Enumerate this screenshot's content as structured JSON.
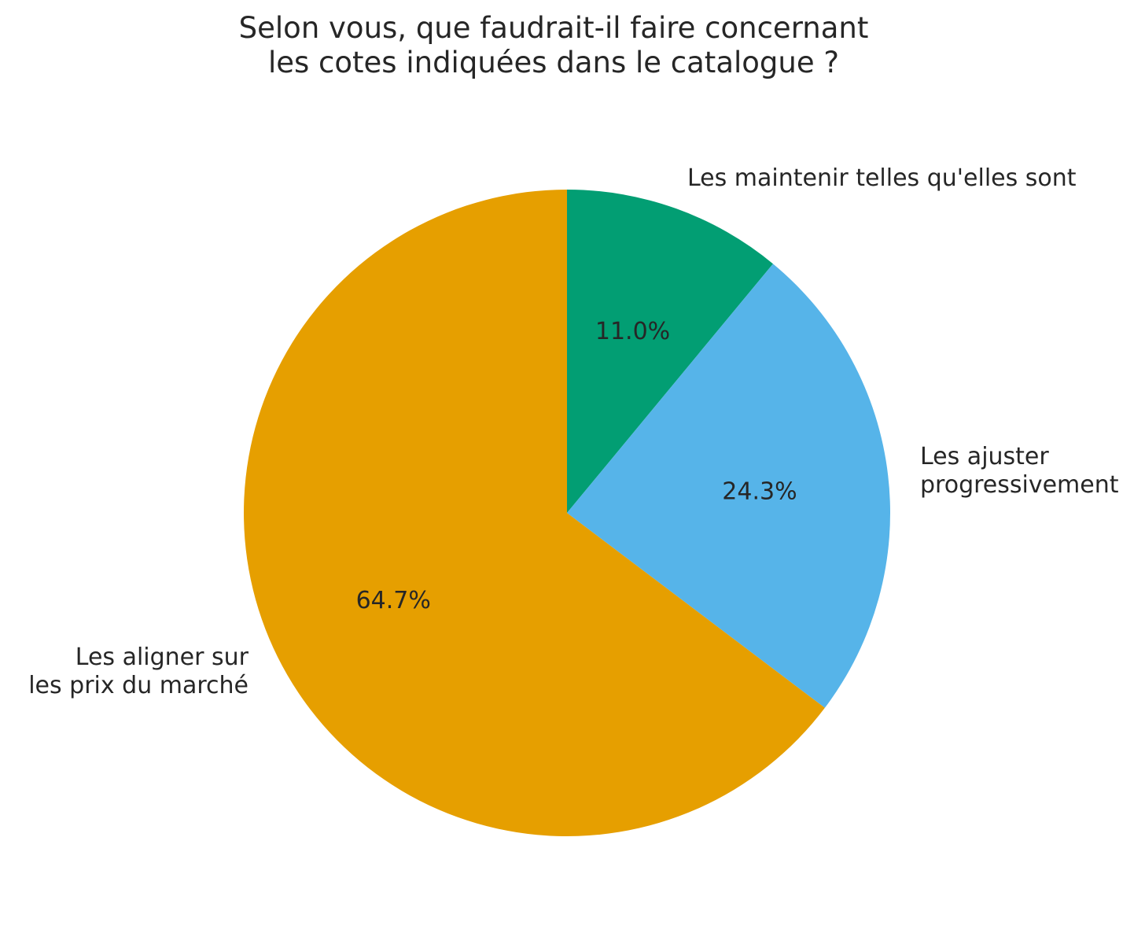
{
  "chart_data": {
    "type": "pie",
    "title_lines": [
      "Selon vous, que faudrait-il faire concernant",
      "les cotes indiquées dans le catalogue ?"
    ],
    "start_angle_deg": 90,
    "direction": "clockwise",
    "slices": [
      {
        "label_lines": [
          "Les maintenir telles qu'elles sont"
        ],
        "value": 11.0,
        "pct_label": "11.0%",
        "color": "#029e73"
      },
      {
        "label_lines": [
          "Les ajuster",
          "progressivement"
        ],
        "value": 24.3,
        "pct_label": "24.3%",
        "color": "#56b4e9"
      },
      {
        "label_lines": [
          "Les aligner sur",
          "les prix du marché"
        ],
        "value": 64.7,
        "pct_label": "64.7%",
        "color": "#e69f00"
      }
    ]
  }
}
